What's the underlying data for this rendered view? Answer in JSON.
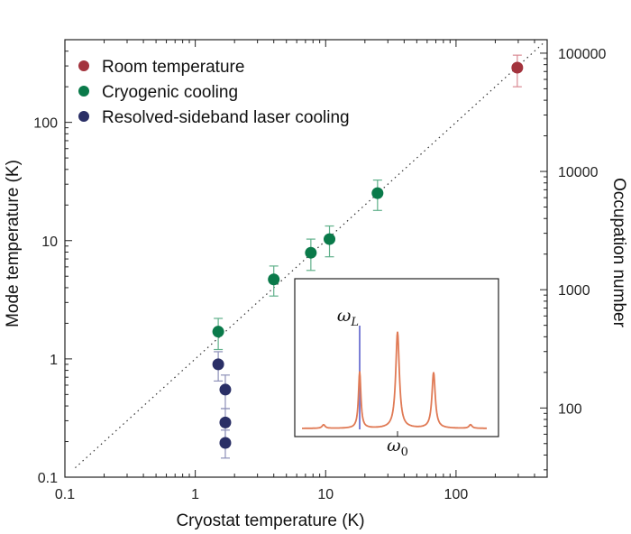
{
  "chart_data": {
    "type": "scatter",
    "xlabel": "Cryostat temperature (K)",
    "ylabel": "Mode temperature (K)",
    "y2label": "Occupation number",
    "xscale": "log",
    "yscale": "log",
    "xlim": [
      0.1,
      500
    ],
    "ylim": [
      0.1,
      500
    ],
    "y2lim": [
      26,
      130000
    ],
    "x_ticks": [
      {
        "v": 0.1,
        "label": "0.1"
      },
      {
        "v": 1,
        "label": "1"
      },
      {
        "v": 10,
        "label": "10"
      },
      {
        "v": 100,
        "label": "100"
      }
    ],
    "y_ticks": [
      {
        "v": 0.1,
        "label": "0.1"
      },
      {
        "v": 1,
        "label": "1"
      },
      {
        "v": 10,
        "label": "10"
      },
      {
        "v": 100,
        "label": "100"
      }
    ],
    "y2_ticks": [
      {
        "v": 100,
        "label": "100"
      },
      {
        "v": 1000,
        "label": "1000"
      },
      {
        "v": 10000,
        "label": "10000"
      },
      {
        "v": 100000,
        "label": "100000"
      }
    ],
    "reference_line": "y = x (dotted)",
    "legend_position": "top-left",
    "series": [
      {
        "name": "Room temperature",
        "color": "#a3333d",
        "points": [
          {
            "x": 295,
            "y": 290,
            "ylo": 200,
            "yhi": 370
          }
        ]
      },
      {
        "name": "Cryogenic cooling",
        "color": "#0a7a4a",
        "points": [
          {
            "x": 1.5,
            "y": 1.7,
            "ylo": 1.2,
            "yhi": 2.2
          },
          {
            "x": 4.0,
            "y": 4.7,
            "ylo": 3.4,
            "yhi": 6.1
          },
          {
            "x": 7.7,
            "y": 7.9,
            "ylo": 5.6,
            "yhi": 10.3
          },
          {
            "x": 10.7,
            "y": 10.3,
            "ylo": 7.3,
            "yhi": 13.3
          },
          {
            "x": 25.0,
            "y": 25.2,
            "ylo": 18.0,
            "yhi": 32.5
          }
        ]
      },
      {
        "name": "Resolved-sideband laser cooling",
        "color": "#2a2f66",
        "points": [
          {
            "x": 1.5,
            "y": 0.9,
            "ylo": 0.65,
            "yhi": 1.15
          },
          {
            "x": 1.7,
            "y": 0.55,
            "ylo": 0.38,
            "yhi": 0.73
          },
          {
            "x": 1.7,
            "y": 0.29,
            "ylo": 0.2,
            "yhi": 0.38
          },
          {
            "x": 1.7,
            "y": 0.195,
            "ylo": 0.145,
            "yhi": 0.25
          }
        ]
      }
    ],
    "inset": {
      "label_laser": "ωL",
      "label_laser_base": "ω",
      "label_laser_sub": "L",
      "label_mode": "ω0",
      "label_mode_base": "ω",
      "label_mode_sub": "0",
      "spectrum_color": "#e07a55",
      "laser_line_color": "#7b7fd6"
    }
  }
}
